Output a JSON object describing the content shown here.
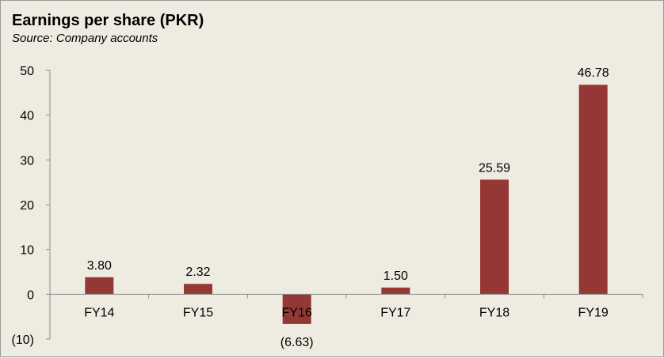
{
  "chart_data": {
    "type": "bar",
    "title": "Earnings per share (PKR)",
    "subtitle": "Source: Company accounts",
    "xlabel": "",
    "ylabel": "",
    "categories": [
      "FY14",
      "FY15",
      "FY16",
      "FY17",
      "FY18",
      "FY19"
    ],
    "values": [
      3.8,
      2.32,
      -6.63,
      1.5,
      25.59,
      46.78
    ],
    "data_labels": [
      "3.80",
      "2.32",
      "(6.63)",
      "1.50",
      "25.59",
      "46.78"
    ],
    "ylim": [
      -10,
      50
    ],
    "yticks": [
      50,
      40,
      30,
      20,
      10,
      0,
      -10
    ],
    "ytick_labels": [
      "50",
      "40",
      "30",
      "20",
      "10",
      "0",
      "(10)"
    ],
    "bar_color": "#953735",
    "grid": false,
    "legend": "none"
  }
}
